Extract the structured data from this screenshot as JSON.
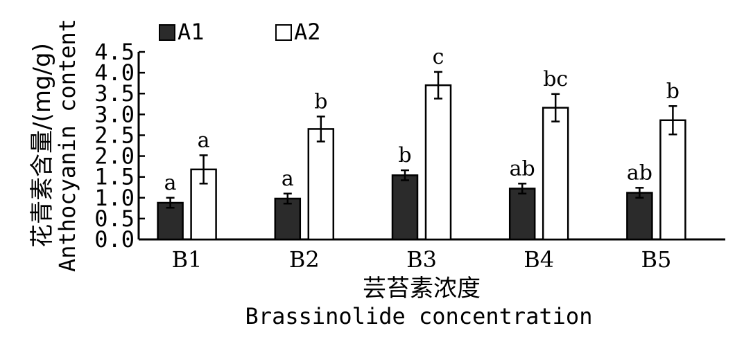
{
  "chart_data": {
    "type": "bar",
    "categories": [
      "B1",
      "B2",
      "B3",
      "B4",
      "B5"
    ],
    "series": [
      {
        "name": "A1",
        "color": "#2b2b2b",
        "values": [
          0.88,
          0.98,
          1.54,
          1.22,
          1.12
        ],
        "errors": [
          0.12,
          0.12,
          0.12,
          0.12,
          0.12
        ],
        "letters": [
          "a",
          "a",
          "b",
          "ab",
          "ab"
        ]
      },
      {
        "name": "A2",
        "color": "#ffffff",
        "values": [
          1.68,
          2.65,
          3.7,
          3.16,
          2.86
        ],
        "errors": [
          0.34,
          0.3,
          0.32,
          0.33,
          0.34
        ],
        "letters": [
          "a",
          "b",
          "c",
          "bc",
          "b"
        ]
      }
    ],
    "ylim": [
      0,
      4.5
    ],
    "yticks": [
      "0.0",
      "0.5",
      "1.0",
      "1.5",
      "2.0",
      "2.5",
      "3.0",
      "3.5",
      "4.0",
      "4.5"
    ],
    "ylabel_line1": "花青素含量/(mg/g)",
    "ylabel_line2": "Anthocyanin content",
    "xlabel_line1": "芸苔素浓度",
    "xlabel_line2": "Brassinolide concentration",
    "legend_position": "top-left"
  }
}
